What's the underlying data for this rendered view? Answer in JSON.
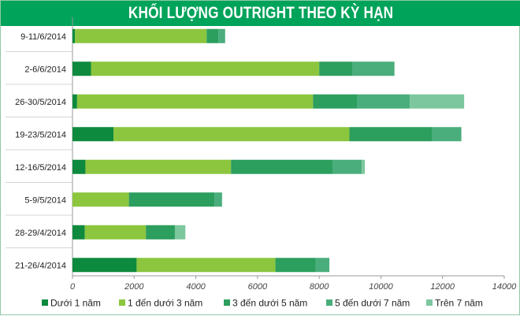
{
  "title": "KHỐI LƯỢNG OUTRIGHT THEO KỲ HẠN",
  "colors": [
    "#0e8a3e",
    "#8cc63f",
    "#2c9e5e",
    "#4aad7c",
    "#7cc79e"
  ],
  "chart_data": {
    "type": "bar",
    "orientation": "horizontal",
    "stacked": true,
    "categories": [
      "9-11/6/2014",
      "2-6/6/2014",
      "26-30/5/2014",
      "19-23/5/2014",
      "12-16/5/2014",
      "5-9/5/2014",
      "28-29/4/2014",
      "21-26/4/2014"
    ],
    "series": [
      {
        "name": "Dưới 1 năm",
        "values": [
          80,
          600,
          150,
          1330,
          420,
          0,
          400,
          2080
        ]
      },
      {
        "name": "1 đến dưới 3 năm",
        "values": [
          4270,
          7400,
          7650,
          7650,
          4720,
          1830,
          1980,
          4500
        ]
      },
      {
        "name": "3 đến dưới 5 năm",
        "values": [
          380,
          1070,
          1440,
          2680,
          3290,
          2770,
          940,
          1300
        ]
      },
      {
        "name": "5 đến dưới 7 năm",
        "values": [
          220,
          1370,
          1700,
          950,
          950,
          250,
          0,
          450
        ]
      },
      {
        "name": "Trên 7 năm",
        "values": [
          0,
          0,
          1760,
          0,
          100,
          0,
          340,
          0
        ]
      }
    ],
    "xlim": [
      0,
      14000
    ],
    "xticks": [
      "0",
      "2000",
      "4000",
      "6000",
      "8000",
      "10000",
      "12000",
      "14000"
    ]
  }
}
